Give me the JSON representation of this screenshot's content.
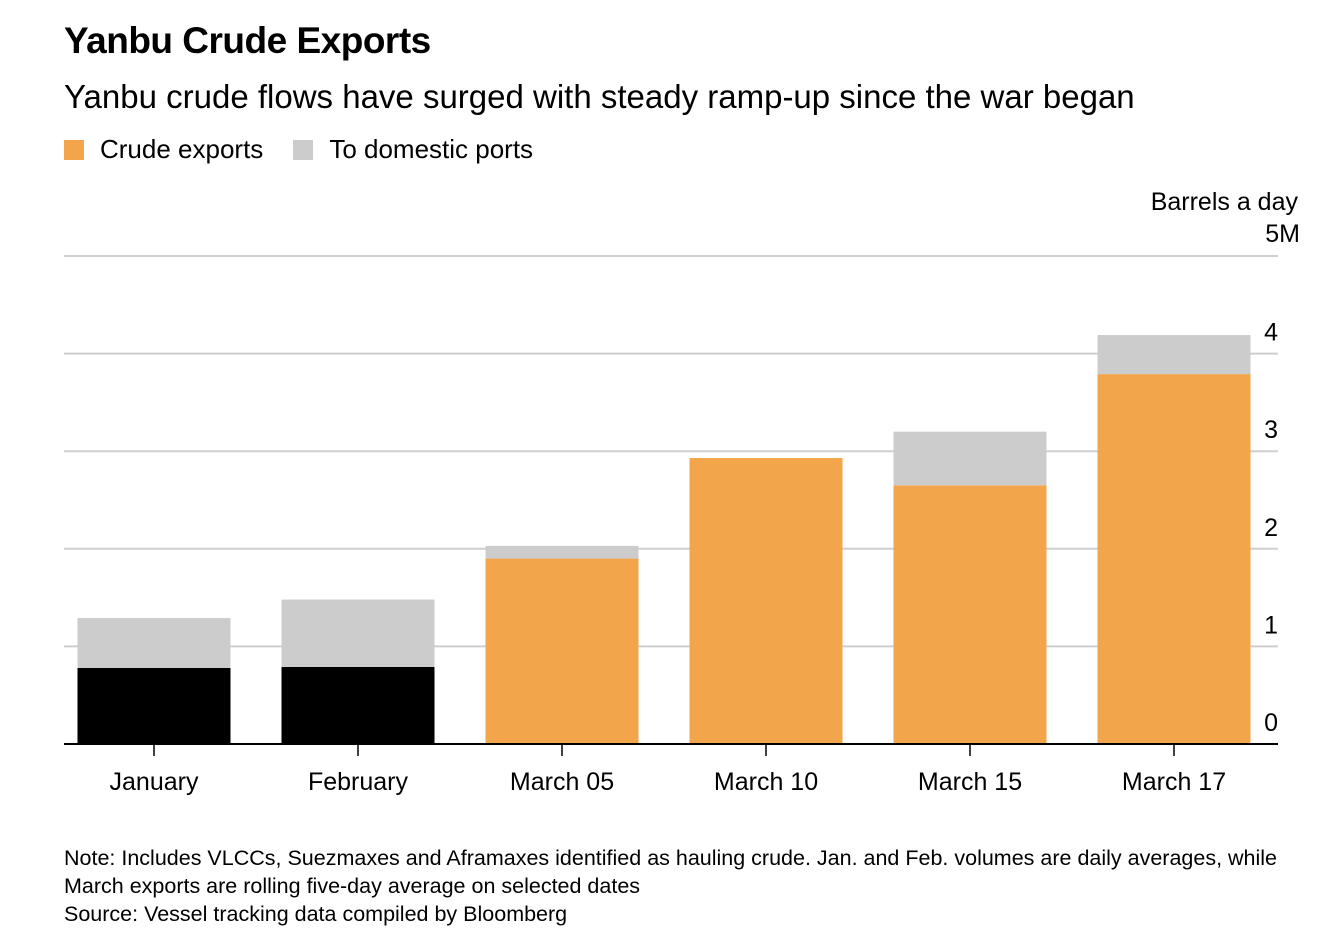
{
  "title": "Yanbu Crude Exports",
  "subtitle": "Yanbu crude flows have surged with steady ramp-up since the war began",
  "notes": {
    "note": "Note: Includes VLCCs, Suezmaxes and Aframaxes identified as hauling crude. Jan. and Feb. volumes are daily averages, while March exports are rolling five-day average on selected dates",
    "source": "Source: Vessel tracking data compiled by Bloomberg"
  },
  "chart_data": {
    "type": "bar",
    "stacked": true,
    "title": "Yanbu Crude Exports",
    "ylabel": "Barrels a day",
    "ylim": [
      0,
      5
    ],
    "yticks": [
      "0",
      "1",
      "2",
      "3",
      "4",
      "5M"
    ],
    "grid": true,
    "legend_position": "top-left",
    "categories": [
      "January",
      "February",
      "March 05",
      "March 10",
      "March 15",
      "March 17"
    ],
    "series": [
      {
        "name": "Crude exports",
        "color": "#f2a54a",
        "values": [
          0.78,
          0.79,
          1.9,
          2.93,
          2.65,
          3.79
        ],
        "bar_colors": [
          "#000000",
          "#000000",
          "#f2a54a",
          "#f2a54a",
          "#f2a54a",
          "#f2a54a"
        ]
      },
      {
        "name": "To domestic ports",
        "color": "#cccccc",
        "values": [
          0.51,
          0.69,
          0.13,
          0.0,
          0.55,
          0.4
        ]
      }
    ]
  }
}
